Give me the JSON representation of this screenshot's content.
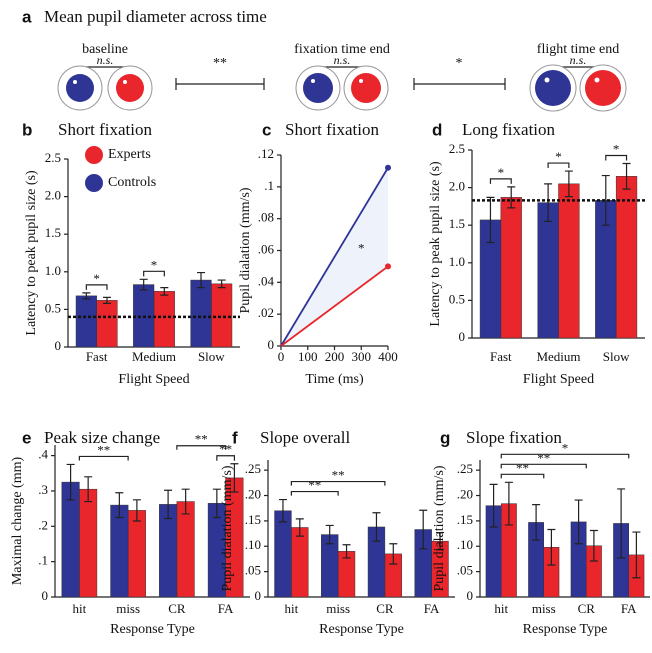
{
  "panel_a": {
    "label": "a",
    "title": "Mean pupil diameter across time",
    "stages": [
      "baseline",
      "fixation time end",
      "flight time end"
    ],
    "within_labels": [
      "n.s.",
      "n.s.",
      "n.s."
    ],
    "between_labels": [
      "**",
      "*"
    ]
  },
  "chart_data": [
    {
      "label": "b",
      "type": "bar",
      "title": "Short fixation",
      "ylabel": "Latency to peak pupil size (s)",
      "xlabel": "Flight Speed",
      "categories": [
        "Fast",
        "Medium",
        "Slow"
      ],
      "series": [
        {
          "name": "Experts",
          "color": "#e8262b",
          "values": [
            0.62,
            0.74,
            0.84
          ],
          "errors": [
            0.04,
            0.05,
            0.05
          ]
        },
        {
          "name": "Controls",
          "color": "#2e3595",
          "values": [
            0.68,
            0.83,
            0.89
          ],
          "errors": [
            0.04,
            0.07,
            0.1
          ]
        }
      ],
      "ylim": [
        0,
        2.5
      ],
      "yticks": [
        0,
        0.5,
        {
          "value": 1,
          "label": "1.0"
        },
        1.5,
        {
          "value": 2,
          "label": "2.0"
        },
        2.5
      ],
      "reference_line": 0.4,
      "legend": "upper left",
      "significance": [
        {
          "text": "*",
          "from": "Fast",
          "to": "Fast"
        },
        {
          "text": "*",
          "from": "Medium",
          "to": "Medium"
        }
      ]
    },
    {
      "label": "c",
      "type": "line",
      "title": "Short fixation",
      "ylabel": "Pupil dialation (mm/s)",
      "xlabel": "Time (ms)",
      "x": [
        0,
        400
      ],
      "series": [
        {
          "color": "#2e3595",
          "values": [
            0,
            0.112
          ]
        },
        {
          "color": "#e8262b",
          "values": [
            0,
            0.05
          ]
        }
      ],
      "xlim": [
        0,
        400
      ],
      "xticks": [
        0,
        100,
        200,
        300,
        400
      ],
      "ylim": [
        0,
        0.12
      ],
      "yticks": [
        0,
        {
          "value": 0.02,
          "label": ".02"
        },
        {
          "value": 0.04,
          "label": ".04"
        },
        {
          "value": 0.06,
          "label": ".06"
        },
        {
          "value": 0.08,
          "label": ".08"
        },
        {
          "value": 0.1,
          "label": ".1"
        },
        {
          "value": 0.12,
          "label": ".12"
        }
      ],
      "annotation": "*"
    },
    {
      "label": "d",
      "type": "bar",
      "title": "Long fixation",
      "ylabel": "Latency to peak pupil size (s)",
      "xlabel": "Flight Speed",
      "categories": [
        "Fast",
        "Medium",
        "Slow"
      ],
      "series": [
        {
          "color": "#e8262b",
          "values": [
            1.87,
            2.05,
            2.15
          ],
          "errors": [
            0.14,
            0.17,
            0.17
          ]
        },
        {
          "color": "#2e3595",
          "values": [
            1.57,
            1.8,
            1.83
          ],
          "errors": [
            0.3,
            0.25,
            0.33
          ]
        }
      ],
      "ylim": [
        0,
        2.5
      ],
      "yticks": [
        0,
        0.5,
        {
          "value": 1,
          "label": "1.0"
        },
        1.5,
        {
          "value": 2,
          "label": "2.0"
        },
        2.5
      ],
      "reference_line": 1.83,
      "significance": [
        {
          "text": "*",
          "from": "Fast",
          "to": "Fast"
        },
        {
          "text": "*",
          "from": "Medium",
          "to": "Medium"
        },
        {
          "text": "*",
          "from": "Slow",
          "to": "Slow"
        }
      ]
    },
    {
      "label": "e",
      "type": "bar",
      "title": "Peak size change",
      "ylabel": "Maximal change (mm)",
      "xlabel": "Response Type",
      "categories": [
        "hit",
        "miss",
        "CR",
        "FA"
      ],
      "series": [
        {
          "color": "#e8262b",
          "values": [
            0.305,
            0.245,
            0.27,
            0.337
          ],
          "errors": [
            0.035,
            0.03,
            0.035,
            0.04
          ]
        },
        {
          "color": "#2e3595",
          "values": [
            0.325,
            0.26,
            0.262,
            0.265
          ],
          "errors": [
            0.05,
            0.035,
            0.04,
            0.04
          ]
        }
      ],
      "ylim": [
        0,
        0.43
      ],
      "yticks": [
        0,
        {
          "value": 0.1,
          "label": ".1"
        },
        {
          "value": 0.2,
          "label": ".2"
        },
        {
          "value": 0.3,
          "label": ".3"
        },
        {
          "value": 0.4,
          "label": ".4"
        }
      ],
      "significance": [
        {
          "text": "**",
          "from": "FA",
          "to": "FA"
        },
        {
          "text": "**",
          "from": "hit",
          "to": "miss"
        },
        {
          "text": "**",
          "from": "CR",
          "to": "FA"
        }
      ]
    },
    {
      "label": "f",
      "type": "bar",
      "title": "Slope overall",
      "ylabel": "Pupil dialation (mm/s)",
      "xlabel": "Response Type",
      "categories": [
        "hit",
        "miss",
        "CR",
        "FA"
      ],
      "series": [
        {
          "color": "#e8262b",
          "values": [
            0.137,
            0.09,
            0.085,
            0.11
          ],
          "errors": [
            0.017,
            0.013,
            0.02,
            0.017
          ]
        },
        {
          "color": "#2e3595",
          "values": [
            0.17,
            0.123,
            0.138,
            0.133
          ],
          "errors": [
            0.022,
            0.018,
            0.028,
            0.038
          ]
        }
      ],
      "ylim": [
        0,
        0.27
      ],
      "yticks": [
        0,
        {
          "value": 0.05,
          "label": ".05"
        },
        {
          "value": 0.1,
          "label": ".10"
        },
        {
          "value": 0.15,
          "label": ".15"
        },
        {
          "value": 0.2,
          "label": ".20"
        },
        {
          "value": 0.25,
          "label": ".25"
        }
      ],
      "significance": [
        {
          "text": "**",
          "from": "hit",
          "to": "miss"
        },
        {
          "text": "**",
          "from": "hit",
          "to": "CR"
        }
      ]
    },
    {
      "label": "g",
      "type": "bar",
      "title": "Slope fixation",
      "ylabel": "Pupil dialation (mm/s)",
      "xlabel": "Response Type",
      "categories": [
        "hit",
        "miss",
        "CR",
        "FA"
      ],
      "series": [
        {
          "color": "#e8262b",
          "values": [
            0.184,
            0.098,
            0.101,
            0.083
          ],
          "errors": [
            0.042,
            0.035,
            0.03,
            0.045
          ]
        },
        {
          "color": "#2e3595",
          "values": [
            0.18,
            0.147,
            0.148,
            0.145
          ],
          "errors": [
            0.042,
            0.035,
            0.043,
            0.068
          ]
        }
      ],
      "ylim": [
        0,
        0.27
      ],
      "yticks": [
        0,
        {
          "value": 0.05,
          "label": ".05"
        },
        {
          "value": 0.1,
          "label": ".10"
        },
        {
          "value": 0.15,
          "label": ".15"
        },
        {
          "value": 0.2,
          "label": ".20"
        },
        {
          "value": 0.25,
          "label": ".25"
        }
      ],
      "significance": [
        {
          "text": "**",
          "from": "hit",
          "to": "miss"
        },
        {
          "text": "**",
          "from": "hit",
          "to": "CR"
        },
        {
          "text": "*",
          "from": "hit",
          "to": "FA"
        }
      ]
    }
  ]
}
